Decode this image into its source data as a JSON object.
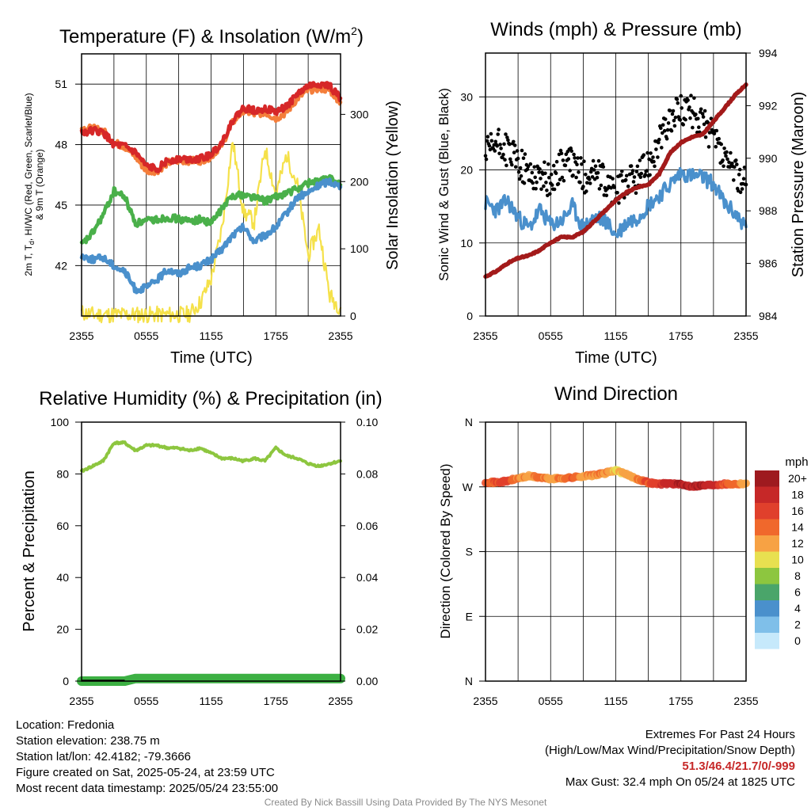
{
  "chart_data": [
    {
      "type": "line",
      "title": "Temperature (F) & Insolation (W/m",
      "title_sup": "2",
      "title_close": ")",
      "xlabel": "Time (UTC)",
      "ylabel_lines": [
        "2m T, T",
        "d",
        ", HI/WC (Red, Green, Scarlet/Blue)",
        "& 9m T (Orange)"
      ],
      "y2label": "Solar Insolation (Yellow)",
      "x_ticks": [
        "2355",
        "0555",
        "1155",
        "1755",
        "2355"
      ],
      "ylim": [
        39.5,
        52.5
      ],
      "y_ticks": [
        42,
        45,
        48,
        51
      ],
      "y2lim": [
        0,
        390
      ],
      "y2_ticks": [
        0,
        100,
        200,
        300
      ],
      "grid": true,
      "x": [
        0,
        1,
        2,
        3,
        4,
        5,
        6,
        7,
        8,
        9,
        10,
        11,
        12,
        13,
        14,
        15,
        16,
        17,
        18,
        19,
        20,
        21,
        22,
        23,
        24
      ],
      "series": [
        {
          "role": "temperature_2m",
          "color": "#d62728",
          "axis": "left",
          "values": [
            48.6,
            48.7,
            48.6,
            48.0,
            47.9,
            47.6,
            46.9,
            46.8,
            47.2,
            47.3,
            47.3,
            47.3,
            47.5,
            48.1,
            49.2,
            49.8,
            49.7,
            49.8,
            49.6,
            49.9,
            50.5,
            50.9,
            51.0,
            50.9,
            50.3
          ]
        },
        {
          "role": "temperature_9m",
          "color": "#f47e3b",
          "axis": "left",
          "values": [
            48.8,
            48.8,
            48.7,
            48.1,
            47.9,
            47.4,
            46.7,
            46.7,
            47.1,
            47.2,
            47.2,
            47.2,
            47.4,
            48.0,
            49.1,
            49.7,
            49.5,
            49.6,
            49.3,
            49.6,
            50.3,
            50.7,
            50.8,
            50.7,
            50.1
          ]
        },
        {
          "role": "dewpoint_2m",
          "color": "#4ab04a",
          "axis": "left",
          "values": [
            43.0,
            43.6,
            44.5,
            45.7,
            45.4,
            44.1,
            44.2,
            44.3,
            44.4,
            44.3,
            44.2,
            44.3,
            44.1,
            44.8,
            45.5,
            45.5,
            45.4,
            45.2,
            45.4,
            45.6,
            45.8,
            46.1,
            46.2,
            46.3,
            46.0
          ]
        },
        {
          "role": "windchill",
          "color": "#4a90cc",
          "axis": "left",
          "values": [
            42.5,
            42.3,
            42.4,
            42.0,
            41.7,
            40.8,
            40.9,
            41.3,
            41.8,
            41.6,
            41.9,
            42.0,
            42.3,
            42.8,
            43.5,
            43.9,
            43.2,
            43.5,
            43.9,
            44.6,
            45.4,
            45.6,
            46.0,
            46.2,
            45.9
          ]
        },
        {
          "role": "solar_insolation",
          "color": "#f5e14a",
          "axis": "right",
          "values": [
            5,
            2,
            2,
            2,
            2,
            2,
            2,
            2,
            2,
            2,
            3,
            20,
            55,
            130,
            260,
            155,
            140,
            250,
            180,
            240,
            195,
            90,
            130,
            30,
            12
          ]
        }
      ]
    },
    {
      "type": "line",
      "title": "Winds (mph) & Pressure (mb)",
      "xlabel": "Time (UTC)",
      "ylabel": "Sonic Wind & Gust (Blue, Black)",
      "y2label": "Station Pressure (Maroon)",
      "x_ticks": [
        "2355",
        "0555",
        "1155",
        "1755",
        "2355"
      ],
      "ylim": [
        0,
        36
      ],
      "y_ticks": [
        0,
        10,
        20,
        30
      ],
      "y2lim": [
        984,
        994
      ],
      "y2_ticks": [
        984,
        986,
        988,
        990,
        992,
        994
      ],
      "grid": true,
      "x": [
        0,
        1,
        2,
        3,
        4,
        5,
        6,
        7,
        8,
        9,
        10,
        11,
        12,
        13,
        14,
        15,
        16,
        17,
        18,
        19,
        20,
        21,
        22,
        23,
        24
      ],
      "series": [
        {
          "role": "sonic_wind",
          "color": "#4a90cc",
          "axis": "left",
          "values": [
            15.5,
            14.5,
            15.8,
            13.5,
            12.0,
            14.5,
            12.5,
            13.0,
            15.0,
            12.0,
            13.5,
            13.2,
            11.0,
            12.8,
            13.5,
            15.2,
            16.5,
            18.0,
            19.6,
            19.2,
            19.0,
            18.1,
            15.5,
            14.0,
            12.2
          ]
        },
        {
          "role": "wind_gust",
          "color": "#000000",
          "axis": "left",
          "values": [
            22.0,
            23.5,
            22.8,
            21.0,
            19.5,
            19.2,
            18.5,
            20.6,
            21.0,
            19.0,
            19.8,
            18.2,
            16.8,
            18.5,
            19.0,
            21.0,
            24.0,
            26.5,
            28.5,
            28.0,
            26.5,
            24.5,
            21.0,
            19.5,
            18.0
          ]
        },
        {
          "role": "station_pressure",
          "color": "#a31a1a",
          "axis": "right",
          "values": [
            985.5,
            985.7,
            986.0,
            986.2,
            986.3,
            986.5,
            986.8,
            987.0,
            987.0,
            987.2,
            987.6,
            988.0,
            988.4,
            988.7,
            988.9,
            989.0,
            989.4,
            990.2,
            990.6,
            990.8,
            990.9,
            991.4,
            991.9,
            992.4,
            992.8
          ]
        }
      ]
    },
    {
      "type": "line",
      "title": "Relative Humidity (%) & Precipitation (in)",
      "ylabel": "Percent & Precipitation",
      "x_ticks": [
        "2355",
        "0555",
        "1155",
        "1755",
        "2355"
      ],
      "ylim": [
        0,
        100
      ],
      "y_ticks": [
        0,
        20,
        40,
        60,
        80,
        100
      ],
      "y2lim": [
        0,
        0.1
      ],
      "y2_ticks": [
        "0.00",
        "0.02",
        "0.04",
        "0.06",
        "0.08",
        "0.10"
      ],
      "grid": true,
      "x": [
        0,
        1,
        2,
        3,
        4,
        5,
        6,
        7,
        8,
        9,
        10,
        11,
        12,
        13,
        14,
        15,
        16,
        17,
        18,
        19,
        20,
        21,
        22,
        23,
        24
      ],
      "series": [
        {
          "role": "relative_humidity",
          "color": "#8dc63f",
          "axis": "left",
          "values": [
            81,
            83,
            85,
            92,
            92,
            89,
            91,
            91,
            90,
            90,
            89,
            90,
            88,
            86,
            86,
            85,
            86,
            85,
            90,
            87,
            86,
            84,
            83,
            84,
            85
          ]
        },
        {
          "role": "precipitation",
          "color": "#3cb043",
          "axis": "right",
          "values": [
            0,
            0,
            0,
            0,
            0,
            0.001,
            0.001,
            0.001,
            0.001,
            0.001,
            0.001,
            0.001,
            0.001,
            0.001,
            0.001,
            0.001,
            0.001,
            0.001,
            0.001,
            0.001,
            0.001,
            0.001,
            0.001,
            0.001,
            0.001
          ]
        }
      ]
    },
    {
      "type": "scatter",
      "title": "Wind Direction",
      "ylabel": "Direction (Colored By Speed)",
      "x_ticks": [
        "2355",
        "0555",
        "1155",
        "1755",
        "2355"
      ],
      "y_ticks": [
        "N",
        "E",
        "S",
        "W",
        "N"
      ],
      "ylim": [
        0,
        360
      ],
      "grid": true,
      "x": [
        0,
        1,
        2,
        3,
        4,
        5,
        6,
        7,
        8,
        9,
        10,
        11,
        12,
        13,
        14,
        15,
        16,
        17,
        18,
        19,
        20,
        21,
        22,
        23,
        24
      ],
      "direction": [
        277,
        276,
        278,
        282,
        285,
        283,
        281,
        282,
        283,
        285,
        286,
        289,
        293,
        287,
        281,
        276,
        274,
        275,
        273,
        271,
        272,
        273,
        274,
        274,
        275
      ],
      "speed": [
        15,
        15,
        16,
        13,
        12,
        14,
        12,
        13,
        15,
        12,
        13,
        13,
        11,
        12,
        13,
        15,
        16,
        18,
        19,
        19,
        19,
        18,
        15,
        14,
        12
      ],
      "colorbar": {
        "title": "mph",
        "labels": [
          "20+",
          "18",
          "16",
          "14",
          "12",
          "10",
          "8",
          "6",
          "4",
          "2",
          "0"
        ],
        "colors": [
          "#9e1a1f",
          "#c62828",
          "#e0402c",
          "#f0682c",
          "#f7a244",
          "#e8e050",
          "#8dc63f",
          "#4aa56a",
          "#4a90cc",
          "#7fbfe9",
          "#c6e9fb"
        ]
      }
    }
  ],
  "info_left": [
    "Location: Fredonia",
    "Station elevation: 238.75 m",
    "Station lat/lon: 42.4182; -79.3666",
    "Figure created on Sat, 2025-05-24, at 23:59 UTC",
    "Most recent data timestamp: 2025/05/24 23:55:00"
  ],
  "extremes": {
    "title": "Extremes For Past 24 Hours",
    "subtitle": "(High/Low/Max Wind/Precipitation/Snow Depth)",
    "values": "51.3/46.4/21.7/0/-999",
    "max_gust": "Max Gust: 32.4 mph On 05/24 at 1825 UTC"
  },
  "credit": "Created By Nick Bassill Using Data Provided By The NYS Mesonet"
}
